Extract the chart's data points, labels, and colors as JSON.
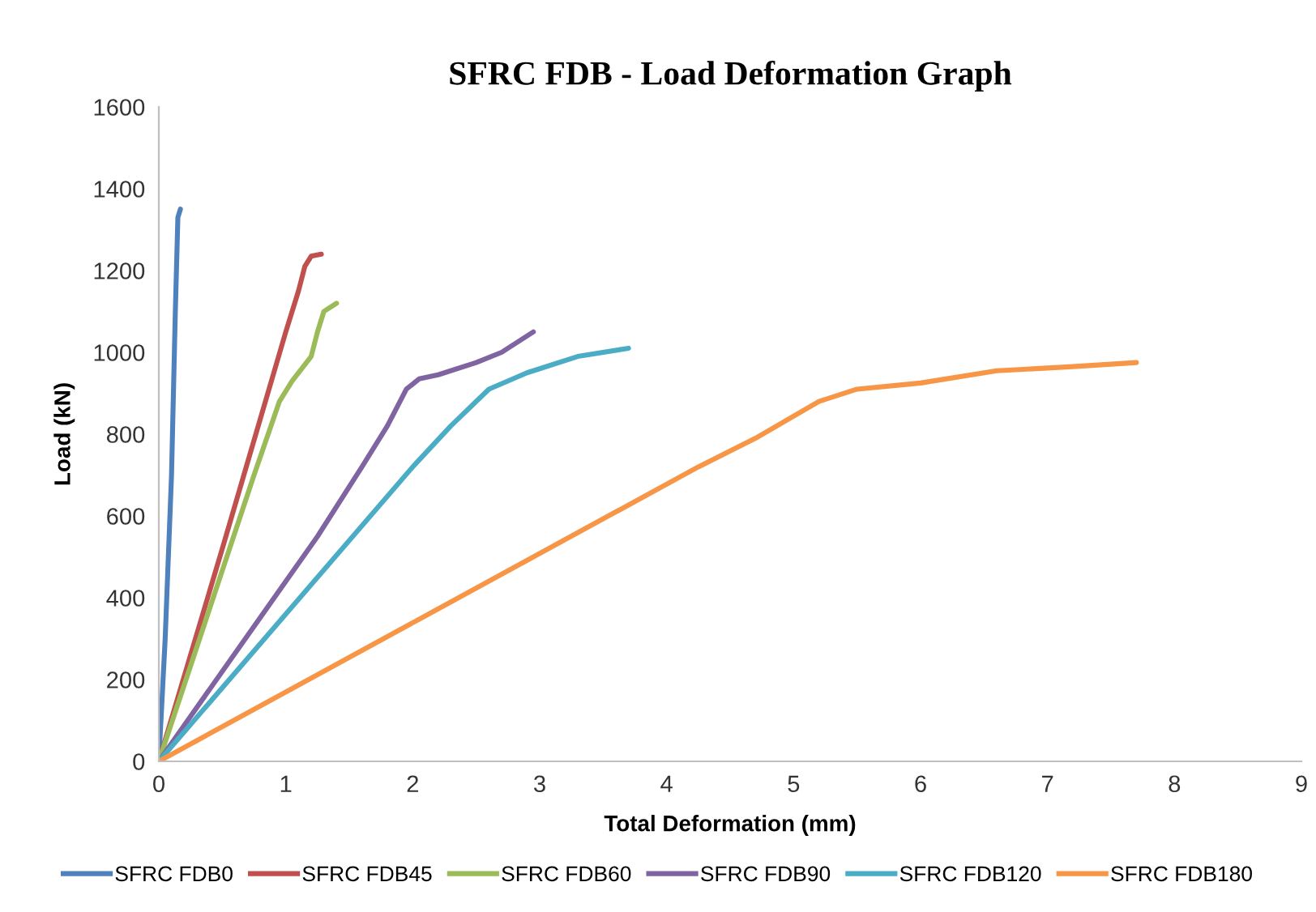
{
  "chart_data": {
    "type": "line",
    "title": "SFRC FDB - Load Deformation Graph",
    "xlabel": "Total Deformation (mm)",
    "ylabel": "Load (kN)",
    "xlim": [
      0,
      9
    ],
    "xticks": [
      0,
      1,
      2,
      3,
      4,
      5,
      6,
      7,
      8,
      9
    ],
    "ylim": [
      0,
      1600
    ],
    "yticks": [
      0,
      200,
      400,
      600,
      800,
      1000,
      1200,
      1400,
      1600
    ],
    "grid": false,
    "legend": "bottom",
    "marker": "none",
    "line_style": "solid",
    "series": [
      {
        "name": "SFRC FDB0",
        "color": "#4f81bd",
        "x": [
          0,
          0.05,
          0.1,
          0.13,
          0.15,
          0.17
        ],
        "values": [
          0,
          300,
          700,
          1100,
          1330,
          1350
        ]
      },
      {
        "name": "SFRC FDB45",
        "color": "#c0504d",
        "x": [
          0,
          0.5,
          1.0,
          1.1,
          1.15,
          1.2,
          1.28
        ],
        "values": [
          0,
          520,
          1050,
          1150,
          1210,
          1235,
          1240
        ]
      },
      {
        "name": "SFRC FDB60",
        "color": "#9bbb59",
        "x": [
          0,
          0.75,
          0.95,
          1.05,
          1.2,
          1.25,
          1.3,
          1.4
        ],
        "values": [
          0,
          700,
          880,
          930,
          990,
          1050,
          1100,
          1120
        ]
      },
      {
        "name": "SFRC FDB90",
        "color": "#8064a2",
        "x": [
          0,
          1.25,
          1.6,
          1.8,
          1.95,
          2.05,
          2.2,
          2.5,
          2.7,
          2.95
        ],
        "values": [
          0,
          550,
          720,
          820,
          910,
          935,
          945,
          975,
          1000,
          1050
        ]
      },
      {
        "name": "SFRC FDB120",
        "color": "#4bacc6",
        "x": [
          0,
          2.0,
          2.3,
          2.6,
          2.9,
          3.3,
          3.7
        ],
        "values": [
          0,
          720,
          820,
          910,
          950,
          990,
          1010
        ]
      },
      {
        "name": "SFRC FDB180",
        "color": "#f79646",
        "x": [
          0,
          4.25,
          4.7,
          5.2,
          5.5,
          6.0,
          6.6,
          7.2,
          7.7
        ],
        "values": [
          0,
          720,
          790,
          880,
          910,
          925,
          955,
          965,
          975
        ]
      }
    ]
  }
}
